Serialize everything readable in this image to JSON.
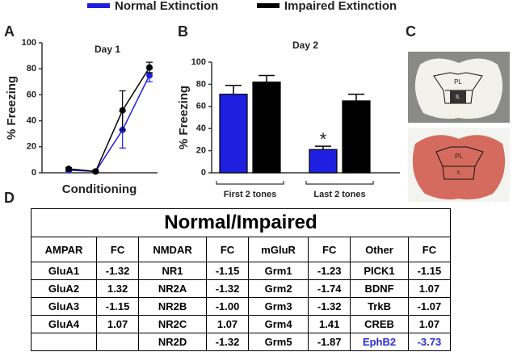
{
  "panels": [
    "A",
    "B",
    "C",
    "D"
  ],
  "chart_data": [
    {
      "type": "line",
      "title": "Day 1",
      "x_label": "Conditioning",
      "y_label": "% Freezing",
      "categories": [
        null,
        null,
        null,
        null
      ],
      "series": [
        {
          "name": "Normal Extinction",
          "color": "#1f1fe0",
          "values": [
            2,
            1,
            33,
            75
          ],
          "errors": [
            1,
            1,
            14,
            5
          ]
        },
        {
          "name": "Impaired Extinction",
          "color": "#000000",
          "values": [
            3,
            1,
            48,
            81
          ],
          "errors": [
            1,
            1,
            15,
            4
          ]
        }
      ],
      "ylim": [
        0,
        100
      ],
      "yticks": [
        0,
        20,
        40,
        60,
        80,
        100
      ]
    },
    {
      "type": "bar",
      "title": "Day 2",
      "y_label": "% Freezing",
      "annotation": "*",
      "categories": [
        "First 2 tones",
        "Last 2 tones"
      ],
      "series": [
        {
          "color": "#1f1fe0",
          "values": [
            71,
            21
          ],
          "errors": [
            8,
            3
          ]
        },
        {
          "color": "#000000",
          "values": [
            82,
            65
          ],
          "errors": [
            6,
            6
          ]
        }
      ],
      "ylim": [
        0,
        100
      ],
      "yticks": [
        0,
        20,
        40,
        60,
        80,
        100
      ]
    }
  ],
  "images": [
    {
      "labels": [
        "PL",
        "IL"
      ]
    },
    {
      "labels": [
        "PL",
        "IL"
      ]
    }
  ],
  "table": {
    "title": "Normal/Impaired",
    "header": [
      "AMPAR",
      "FC",
      "NMDAR",
      "FC",
      "mGluR",
      "FC",
      "Other",
      "FC"
    ],
    "rows": [
      [
        "GluA1",
        "-1.32",
        "NR1",
        "-1.15",
        "Grm1",
        "-1.23",
        "PICK1",
        "-1.15"
      ],
      [
        "GluA2",
        "1.32",
        "NR2A",
        "-1.32",
        "Grm2",
        "-1.74",
        "BDNF",
        "1.07"
      ],
      [
        "GluA3",
        "-1.15",
        "NR2B",
        "-1.00",
        "Grm3",
        "-1.32",
        "TrkB",
        "-1.07"
      ],
      [
        "GluA4",
        "1.07",
        "NR2C",
        "1.07",
        "Grm4",
        "1.41",
        "CREB",
        "1.07"
      ],
      [
        null,
        null,
        "NR2D",
        "-1.32",
        "Grm5",
        "-1.87",
        "EphB2",
        "-3.73"
      ]
    ]
  }
}
